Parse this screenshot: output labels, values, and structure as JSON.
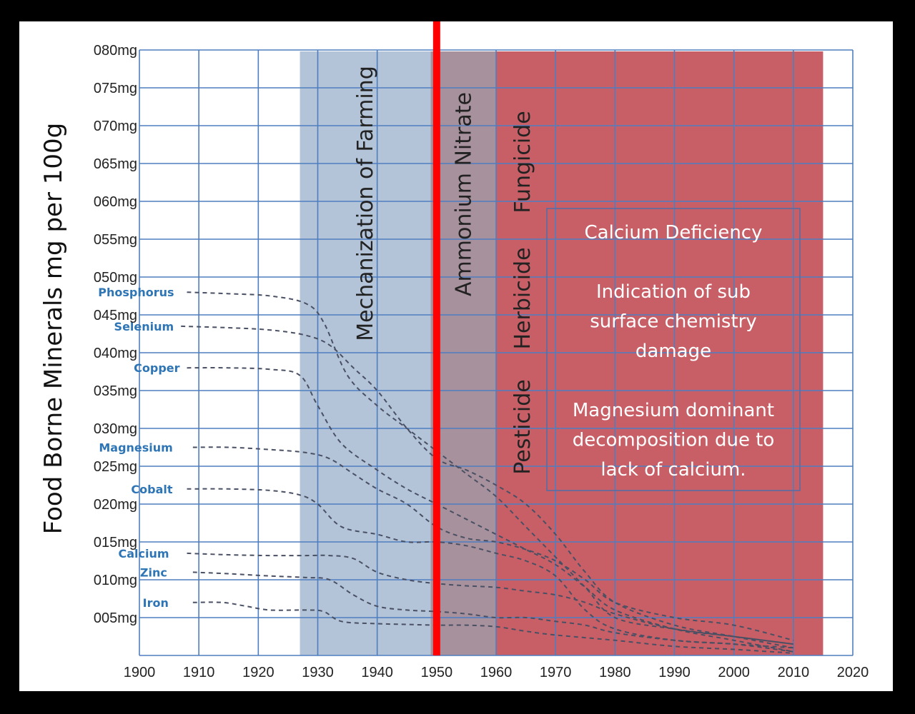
{
  "chart_data": {
    "type": "line",
    "title": "",
    "xlabel": "",
    "ylabel": "Food Borne Minerals mg per 100g",
    "x_ticks": [
      "1900",
      "1910",
      "1920",
      "1930",
      "1940",
      "1950",
      "1960",
      "1970",
      "1980",
      "1990",
      "2000",
      "2010",
      "2020"
    ],
    "y_ticks": [
      "005mg",
      "010mg",
      "015mg",
      "020mg",
      "025mg",
      "030mg",
      "035mg",
      "040mg",
      "045mg",
      "050mg",
      "055mg",
      "060mg",
      "065mg",
      "070mg",
      "075mg",
      "080mg"
    ],
    "xlim": [
      1900,
      2020
    ],
    "ylim": [
      0,
      80
    ],
    "grid": true,
    "marker_year": 1950,
    "bands": [
      {
        "x0": 1927,
        "x1": 1949,
        "label": "Mechanization of Farming",
        "color": "#b3c3d8"
      },
      {
        "x0": 1949,
        "x1": 1960,
        "label": "Ammonium Nitrate",
        "color": "#a7919d"
      },
      {
        "x0": 1960,
        "x1": 2015,
        "labels": [
          "Pesticide",
          "Herbicide",
          "Fungicide"
        ],
        "color": "#c85f66"
      }
    ],
    "annotation": {
      "lines": [
        "Calcium Deficiency",
        "",
        "Indication of sub",
        "surface chemistry",
        "damage",
        "",
        "Magnesium dominant",
        "decomposition due to",
        "lack of calcium."
      ]
    },
    "series": [
      {
        "name": "Phosphorus",
        "x": [
          1908,
          1915,
          1922,
          1928,
          1931,
          1935,
          1940,
          1945,
          1950,
          1955,
          1960,
          1965,
          1970,
          1975,
          1980,
          1990,
          2000,
          2010
        ],
        "values": [
          48,
          47.8,
          47.5,
          46.5,
          44,
          37,
          33,
          30,
          27,
          24,
          21,
          17,
          13,
          9,
          5,
          3.5,
          2.5,
          1.5
        ]
      },
      {
        "name": "Selenium",
        "x": [
          1907,
          1915,
          1922,
          1928,
          1932,
          1936,
          1940,
          1945,
          1950,
          1955,
          1960,
          1965,
          1970,
          1975,
          1980,
          1990,
          2000,
          2010
        ],
        "values": [
          43.5,
          43.3,
          43,
          42.3,
          41,
          38,
          35,
          30,
          26,
          24.5,
          22.5,
          20,
          16,
          11,
          7,
          4,
          2.5,
          1
        ]
      },
      {
        "name": "Copper",
        "x": [
          1908,
          1915,
          1922,
          1927,
          1930,
          1934,
          1940,
          1945,
          1950,
          1955,
          1960,
          1965,
          1970,
          1975,
          1980,
          1990,
          2000,
          2010
        ],
        "values": [
          38,
          38,
          37.8,
          37,
          33,
          28,
          24.5,
          22,
          20,
          18,
          16,
          14,
          12,
          9,
          6,
          3.5,
          2,
          0.5
        ]
      },
      {
        "name": "Magnesium",
        "x": [
          1909,
          1915,
          1922,
          1928,
          1932,
          1936,
          1940,
          1945,
          1950,
          1955,
          1960,
          1965,
          1970,
          1975,
          1980,
          1990,
          2000,
          2010
        ],
        "values": [
          27.5,
          27.5,
          27.2,
          26.8,
          26,
          24,
          22,
          20,
          17,
          15.5,
          15,
          14,
          12.5,
          10,
          7,
          5,
          4,
          2
        ]
      },
      {
        "name": "Cobalt",
        "x": [
          1908,
          1915,
          1922,
          1927,
          1930,
          1934,
          1940,
          1945,
          1950,
          1955,
          1960,
          1965,
          1970,
          1975,
          1980,
          1990,
          2000,
          2010
        ],
        "values": [
          22,
          22,
          21.8,
          21.2,
          20,
          17,
          16,
          15,
          15,
          14.5,
          13.5,
          12.5,
          10.5,
          6,
          3.5,
          2,
          1.5,
          0.5
        ]
      },
      {
        "name": "Calcium",
        "x": [
          1908,
          1915,
          1922,
          1928,
          1932,
          1936,
          1940,
          1945,
          1950,
          1955,
          1960,
          1965,
          1970,
          1975,
          1980,
          1990,
          2000,
          2010
        ],
        "values": [
          13.5,
          13.3,
          13.2,
          13.2,
          13.2,
          12.8,
          11,
          10,
          9.5,
          9.2,
          9,
          8.5,
          8,
          7,
          5.5,
          3.5,
          2.5,
          1.5
        ]
      },
      {
        "name": "Zinc",
        "x": [
          1909,
          1915,
          1922,
          1928,
          1932,
          1936,
          1940,
          1945,
          1950,
          1955,
          1960,
          1965,
          1970,
          1975,
          1980,
          1990,
          2000,
          2010
        ],
        "values": [
          11,
          10.8,
          10.5,
          10.3,
          10,
          8,
          6.5,
          6,
          5.8,
          5.5,
          5,
          5,
          4.5,
          4,
          3,
          2,
          1.5,
          1
        ]
      },
      {
        "name": "Iron",
        "x": [
          1909,
          1914,
          1918,
          1922,
          1928,
          1931,
          1934,
          1940,
          1945,
          1950,
          1955,
          1960,
          1965,
          1970,
          1980,
          1990,
          2000,
          2010
        ],
        "values": [
          7,
          7,
          6.5,
          6,
          6,
          5.8,
          4.5,
          4.2,
          4.1,
          4,
          4,
          3.8,
          3.2,
          2.7,
          2,
          1.2,
          0.8,
          0.3
        ]
      }
    ]
  }
}
